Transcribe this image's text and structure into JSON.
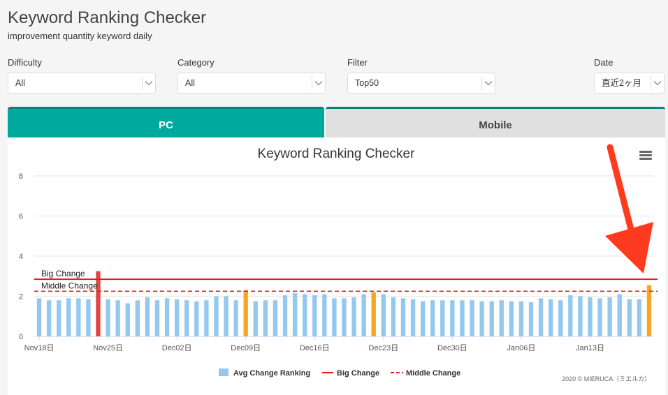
{
  "header": {
    "title": "Keyword Ranking Checker",
    "subtitle": "improvement quantity keyword daily"
  },
  "filters": {
    "difficulty": {
      "label": "Difficulty",
      "value": "All"
    },
    "category": {
      "label": "Category",
      "value": "All"
    },
    "filter": {
      "label": "Filter",
      "value": "Top50"
    },
    "date": {
      "label": "Date",
      "value": "直近2ヶ月"
    }
  },
  "tabs": {
    "pc": "PC",
    "mobile": "Mobile",
    "active": "PC"
  },
  "colors": {
    "accent": "#00a99d",
    "bar_normal": "#94c8ef",
    "bar_big": "#e04444",
    "bar_middle": "#f5a623",
    "big_line": "#e02020",
    "middle_line": "#e02020"
  },
  "credit": "2020 © MIERUCA（ミエルカ）",
  "chart_data": {
    "type": "bar",
    "title": "Keyword Ranking Checker",
    "ylim": [
      0,
      8
    ],
    "yticks": [
      0,
      2,
      4,
      6,
      8
    ],
    "x_tick_labels": [
      "Nov18日",
      "Nov25日",
      "Dec02日",
      "Dec09日",
      "Dec16日",
      "Dec23日",
      "Dec30日",
      "Jan06日",
      "Jan13日"
    ],
    "x_tick_every": 7,
    "series_name": "Avg Change Ranking",
    "values": [
      1.9,
      1.8,
      1.8,
      1.9,
      1.9,
      1.85,
      3.25,
      1.85,
      1.8,
      1.65,
      1.8,
      1.95,
      1.8,
      1.9,
      1.85,
      1.8,
      1.75,
      1.8,
      2.0,
      2.0,
      1.8,
      2.3,
      1.75,
      1.8,
      1.8,
      2.05,
      2.15,
      2.1,
      2.05,
      2.1,
      1.9,
      1.9,
      1.95,
      2.1,
      2.2,
      2.1,
      1.95,
      1.9,
      1.85,
      1.75,
      1.8,
      1.8,
      1.8,
      1.8,
      1.8,
      1.75,
      1.75,
      1.8,
      1.75,
      1.75,
      1.7,
      1.9,
      1.85,
      1.8,
      2.05,
      2.0,
      1.95,
      1.9,
      1.95,
      2.1,
      1.85,
      1.85,
      2.55
    ],
    "highlight": {
      "big": [
        6
      ],
      "middle": [
        21,
        34,
        62
      ]
    },
    "big_change": {
      "label": "Big Change",
      "value": 2.85
    },
    "middle_change": {
      "label": "Middle Change",
      "value": 2.25
    },
    "legend": [
      "Avg Change Ranking",
      "Big Change",
      "Middle Change"
    ],
    "legend_position": "bottom",
    "grid": true
  }
}
